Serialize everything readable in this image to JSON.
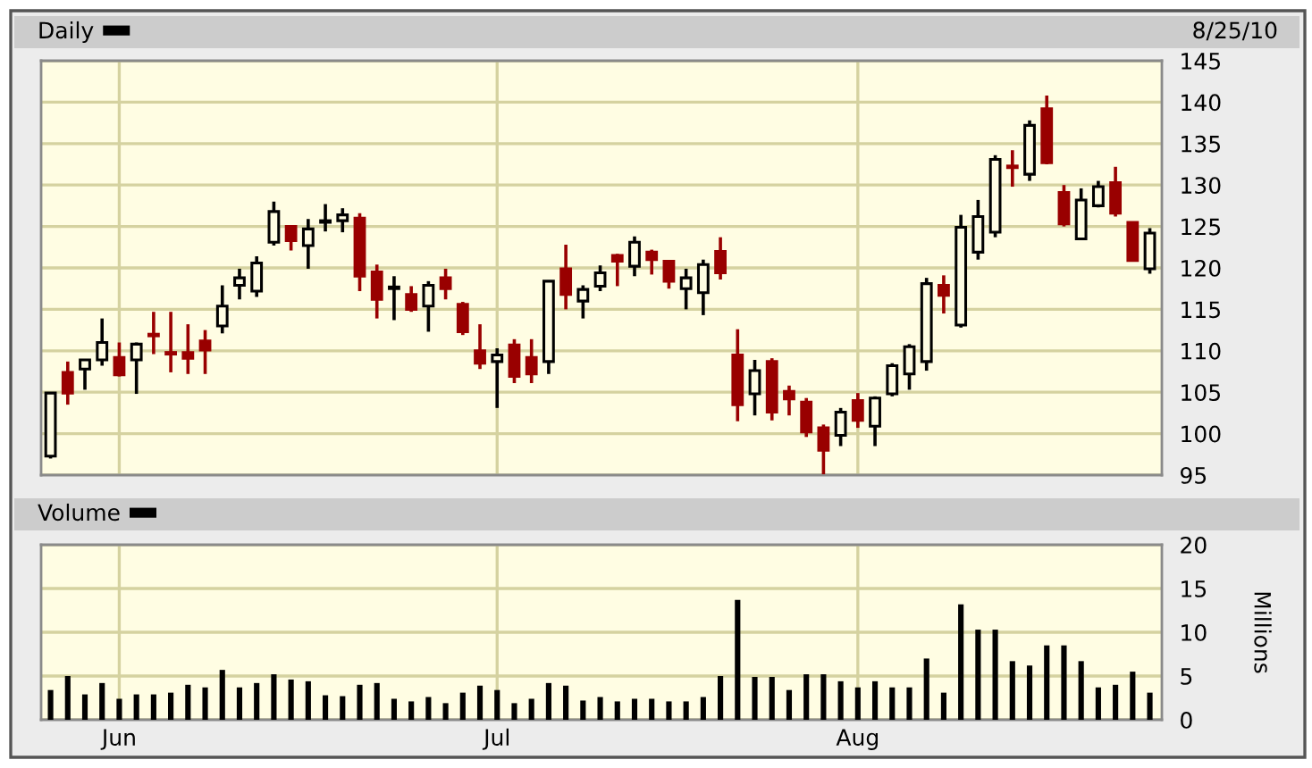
{
  "chart_data": [
    {
      "type": "candlestick",
      "subtitle": "8/25/10",
      "categories": [
        null,
        null,
        null,
        null,
        null,
        null,
        null,
        null,
        null,
        null,
        null,
        null,
        null,
        null,
        null,
        null,
        null,
        null,
        null,
        null,
        null,
        null,
        null,
        null,
        null,
        null,
        null,
        null,
        null,
        null,
        null,
        null,
        null,
        null,
        null,
        null,
        null,
        null,
        null,
        null,
        null,
        null,
        null,
        null,
        null,
        null,
        null,
        null,
        null,
        null,
        null,
        null,
        null,
        null,
        null,
        null,
        null,
        null,
        null,
        null,
        null,
        null,
        null,
        null,
        null
      ],
      "series": [
        {
          "name": "Daily",
          "color": "#000000",
          "colors": [
            "#000000",
            "#990000",
            "#000000",
            "#000000",
            "#990000",
            "#000000",
            "#990000",
            "#990000",
            "#990000",
            "#990000",
            "#000000",
            "#000000",
            "#000000",
            "#000000",
            "#990000",
            "#000000",
            "#000000",
            "#000000",
            "#990000",
            "#990000",
            "#000000",
            "#990000",
            "#000000",
            "#990000",
            "#990000",
            "#990000",
            "#000000",
            "#990000",
            "#990000",
            "#000000",
            "#990000",
            "#000000",
            "#000000",
            "#990000",
            "#000000",
            "#990000",
            "#990000",
            "#000000",
            "#000000",
            "#990000",
            "#990000",
            "#000000",
            "#990000",
            "#990000",
            "#990000",
            "#990000",
            "#000000",
            "#990000",
            "#000000",
            "#000000",
            "#000000",
            "#000000",
            "#990000",
            "#000000",
            "#000000",
            "#000000",
            "#990000",
            "#000000",
            "#990000",
            "#990000",
            "#000000",
            "#000000",
            "#990000",
            "#990000",
            "#000000"
          ],
          "ohlc": [
            [
              97.3,
              105.0,
              97.0,
              104.9
            ],
            [
              107.4,
              108.7,
              103.5,
              104.9
            ],
            [
              107.8,
              109.0,
              105.3,
              108.9
            ],
            [
              108.9,
              113.9,
              108.2,
              111.0
            ],
            [
              109.2,
              111.0,
              106.9,
              107.1
            ],
            [
              108.9,
              111.0,
              104.8,
              110.8
            ],
            [
              112.0,
              114.7,
              109.6,
              111.8
            ],
            [
              109.8,
              114.7,
              107.4,
              109.6
            ],
            [
              109.8,
              113.2,
              107.2,
              109.1
            ],
            [
              111.2,
              112.5,
              107.2,
              110.1
            ],
            [
              113.0,
              117.9,
              112.1,
              115.4
            ],
            [
              117.9,
              119.9,
              116.2,
              118.8
            ],
            [
              117.2,
              121.4,
              116.5,
              120.6
            ],
            [
              123.1,
              128.0,
              122.7,
              126.8
            ],
            [
              125.0,
              125.1,
              122.1,
              123.3
            ],
            [
              122.7,
              125.9,
              119.9,
              124.7
            ],
            [
              125.5,
              127.7,
              124.4,
              125.7
            ],
            [
              125.7,
              127.2,
              124.3,
              126.4
            ],
            [
              126.0,
              126.6,
              117.2,
              119.0
            ],
            [
              119.5,
              120.4,
              113.9,
              116.2
            ],
            [
              117.5,
              119.0,
              113.7,
              117.7
            ],
            [
              116.8,
              117.8,
              114.7,
              115.0
            ],
            [
              115.4,
              118.4,
              112.3,
              117.9
            ],
            [
              118.8,
              119.9,
              116.2,
              117.5
            ],
            [
              115.6,
              115.9,
              111.9,
              112.3
            ],
            [
              110.0,
              113.2,
              107.8,
              108.5
            ],
            [
              108.7,
              110.3,
              103.1,
              109.5
            ],
            [
              110.7,
              111.4,
              106.1,
              106.9
            ],
            [
              109.2,
              111.4,
              106.1,
              107.2
            ],
            [
              108.7,
              118.5,
              107.2,
              118.4
            ],
            [
              119.9,
              122.8,
              115.0,
              116.8
            ],
            [
              116.0,
              117.9,
              113.9,
              117.4
            ],
            [
              117.8,
              120.3,
              117.2,
              119.4
            ],
            [
              121.5,
              121.7,
              117.8,
              120.8
            ],
            [
              120.2,
              123.8,
              119.0,
              123.1
            ],
            [
              121.9,
              122.2,
              119.2,
              121.0
            ],
            [
              120.8,
              120.9,
              117.5,
              118.4
            ],
            [
              117.5,
              119.9,
              115.0,
              118.8
            ],
            [
              117.0,
              121.0,
              114.3,
              120.4
            ],
            [
              122.0,
              123.7,
              118.6,
              119.4
            ],
            [
              109.5,
              112.6,
              101.5,
              103.5
            ],
            [
              104.8,
              108.9,
              102.2,
              107.6
            ],
            [
              108.7,
              109.1,
              101.6,
              102.6
            ],
            [
              105.1,
              105.8,
              102.2,
              104.2
            ],
            [
              103.8,
              104.3,
              99.6,
              100.2
            ],
            [
              100.7,
              101.1,
              95.1,
              98.0
            ],
            [
              99.8,
              103.1,
              98.5,
              102.6
            ],
            [
              104.0,
              104.9,
              100.7,
              101.6
            ],
            [
              100.9,
              104.5,
              98.5,
              104.3
            ],
            [
              104.8,
              108.5,
              104.5,
              108.2
            ],
            [
              107.2,
              110.8,
              105.3,
              110.5
            ],
            [
              108.7,
              118.8,
              107.6,
              118.1
            ],
            [
              117.9,
              119.1,
              114.5,
              116.7
            ],
            [
              113.1,
              126.4,
              112.8,
              124.9
            ],
            [
              121.9,
              128.2,
              121.0,
              126.2
            ],
            [
              124.3,
              133.6,
              123.7,
              133.1
            ],
            [
              132.3,
              134.2,
              129.8,
              132.1
            ],
            [
              131.3,
              137.8,
              130.5,
              137.2
            ],
            [
              139.2,
              140.8,
              132.5,
              132.7
            ],
            [
              129.1,
              130.0,
              125.0,
              125.3
            ],
            [
              123.5,
              129.6,
              123.4,
              128.2
            ],
            [
              127.5,
              130.5,
              127.3,
              129.8
            ],
            [
              130.3,
              132.2,
              126.2,
              126.6
            ],
            [
              125.5,
              125.6,
              120.8,
              120.9
            ],
            [
              119.9,
              124.8,
              119.3,
              124.2
            ]
          ]
        }
      ],
      "ylim": [
        95,
        145
      ],
      "yticks": [
        95,
        100,
        105,
        110,
        115,
        120,
        125,
        130,
        135,
        140,
        145
      ],
      "grid": true,
      "legend": "top left",
      "tick_labels": "y"
    },
    {
      "type": "bar",
      "ylabel": "Millions",
      "categories": [
        null,
        null,
        null,
        null,
        "Jun",
        null,
        null,
        null,
        null,
        null,
        null,
        null,
        null,
        null,
        null,
        null,
        null,
        null,
        null,
        null,
        null,
        null,
        null,
        null,
        null,
        null,
        "Jul",
        null,
        null,
        null,
        null,
        null,
        null,
        null,
        null,
        null,
        null,
        null,
        null,
        null,
        null,
        null,
        null,
        null,
        null,
        null,
        null,
        "Aug",
        null,
        null,
        null,
        null,
        null,
        null,
        null,
        null,
        null,
        null,
        null,
        null,
        null,
        null,
        null,
        null,
        null
      ],
      "series": [
        {
          "name": "Volume",
          "color": "#000000",
          "values": [
            3.4,
            5.0,
            2.9,
            4.2,
            2.4,
            2.9,
            2.9,
            3.1,
            4.0,
            3.7,
            5.7,
            3.7,
            4.2,
            5.2,
            4.6,
            4.4,
            2.8,
            2.7,
            4.0,
            4.2,
            2.4,
            2.1,
            2.6,
            1.9,
            3.1,
            3.9,
            3.4,
            1.9,
            2.4,
            4.2,
            3.9,
            2.2,
            2.6,
            2.1,
            2.4,
            2.4,
            2.1,
            2.1,
            2.6,
            5.0,
            13.7,
            4.9,
            4.9,
            3.4,
            5.2,
            5.2,
            4.4,
            3.7,
            4.4,
            3.7,
            3.7,
            7.0,
            3.1,
            13.2,
            10.3,
            10.3,
            6.7,
            6.2,
            8.5,
            8.5,
            6.7,
            3.7,
            4.0,
            5.5,
            3.1
          ]
        }
      ],
      "ylim": [
        0,
        20
      ],
      "yticks": [
        0,
        5,
        10,
        15,
        20
      ],
      "grid": true,
      "legend": "top left"
    }
  ]
}
